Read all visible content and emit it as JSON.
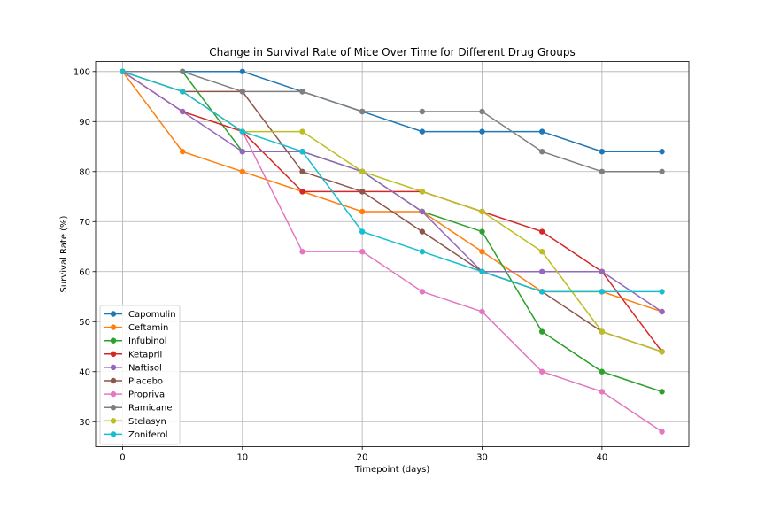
{
  "chart_data": {
    "type": "line",
    "title": "Change in Survival Rate of Mice Over Time for Different Drug Groups",
    "xlabel": "Timepoint (days)",
    "ylabel": "Survival Rate (%)",
    "xlim": [
      -2.25,
      47.25
    ],
    "ylim": [
      25,
      102
    ],
    "xticks": [
      0,
      10,
      20,
      30,
      40
    ],
    "yticks": [
      30,
      40,
      50,
      60,
      70,
      80,
      90,
      100
    ],
    "grid": true,
    "legend_position": "lower-left",
    "x": [
      0,
      5,
      10,
      15,
      20,
      25,
      30,
      35,
      40,
      45
    ],
    "series": [
      {
        "name": "Capomulin",
        "color": "#1f77b4",
        "values": [
          100,
          100,
          100,
          96,
          92,
          88,
          88,
          88,
          84,
          84
        ]
      },
      {
        "name": "Ceftamin",
        "color": "#ff7f0e",
        "values": [
          100,
          84,
          80,
          76,
          72,
          72,
          64,
          56,
          56,
          52
        ]
      },
      {
        "name": "Infubinol",
        "color": "#2ca02c",
        "values": [
          100,
          100,
          84,
          84,
          80,
          72,
          68,
          48,
          40,
          36
        ]
      },
      {
        "name": "Ketapril",
        "color": "#d62728",
        "values": [
          100,
          92,
          88,
          76,
          76,
          76,
          72,
          68,
          60,
          44
        ]
      },
      {
        "name": "Naftisol",
        "color": "#9467bd",
        "values": [
          100,
          92,
          84,
          84,
          80,
          72,
          60,
          60,
          60,
          52
        ]
      },
      {
        "name": "Placebo",
        "color": "#8c564b",
        "values": [
          100,
          96,
          96,
          80,
          76,
          68,
          60,
          56,
          48,
          44
        ]
      },
      {
        "name": "Propriva",
        "color": "#e377c2",
        "values": [
          100,
          96,
          88,
          64,
          64,
          56,
          52,
          40,
          36,
          28
        ]
      },
      {
        "name": "Ramicane",
        "color": "#7f7f7f",
        "values": [
          100,
          100,
          96,
          96,
          92,
          92,
          92,
          84,
          80,
          80
        ]
      },
      {
        "name": "Stelasyn",
        "color": "#bcbd22",
        "values": [
          100,
          96,
          88,
          88,
          80,
          76,
          72,
          64,
          48,
          44
        ]
      },
      {
        "name": "Zoniferol",
        "color": "#17becf",
        "values": [
          100,
          96,
          88,
          84,
          68,
          64,
          60,
          56,
          56,
          56
        ]
      }
    ]
  }
}
